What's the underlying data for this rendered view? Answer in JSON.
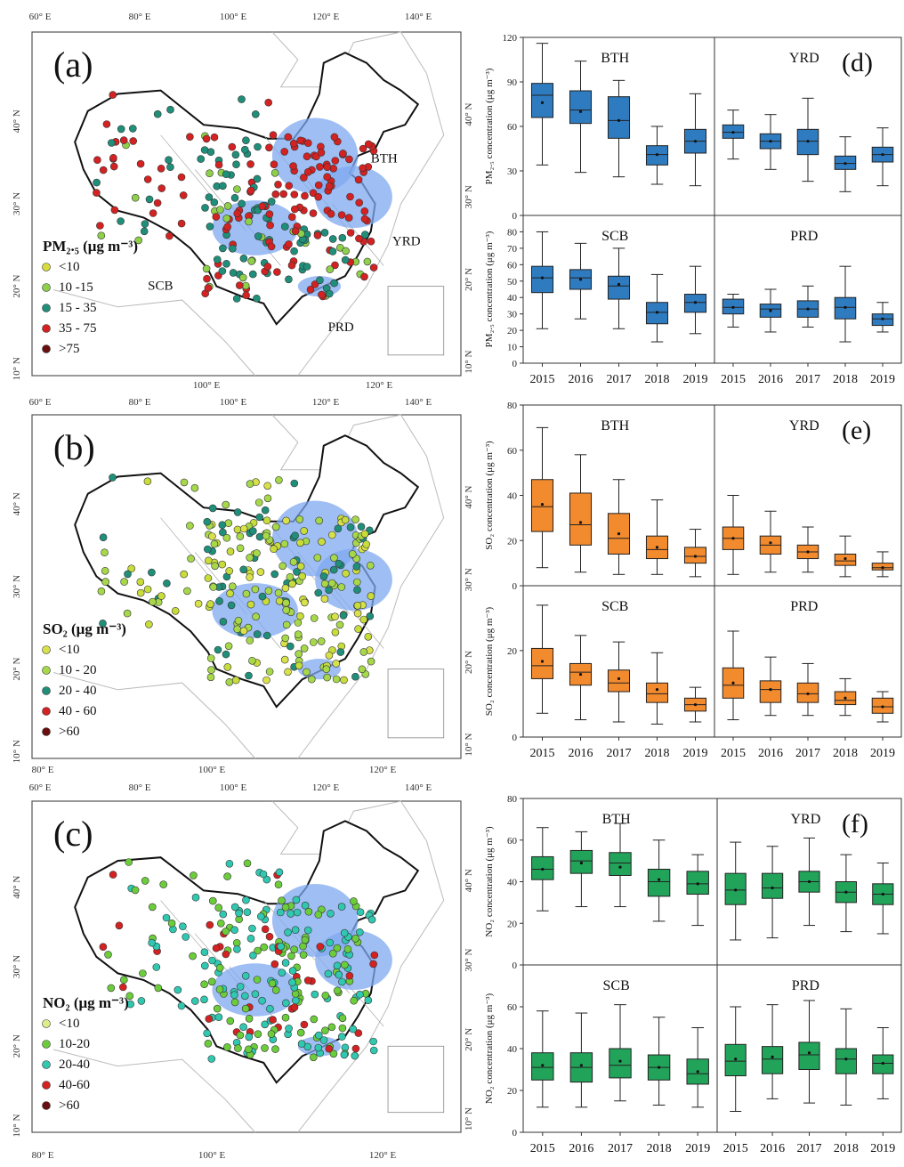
{
  "maps": [
    {
      "id": "a",
      "letter": "(a)",
      "legend_title": "PM₂.₅ (μg m⁻³)",
      "legend": [
        {
          "label": "<10",
          "color": "#d8dc3a"
        },
        {
          "label": "10 -15",
          "color": "#8fd04a"
        },
        {
          "label": "15 - 35",
          "color": "#1f8f7a"
        },
        {
          "label": "35 - 75",
          "color": "#d42222"
        },
        {
          "label": ">75",
          "color": "#6a0f0f"
        }
      ],
      "top_lon_ticks": [
        "60° E",
        "80° E",
        "100° E",
        "120° E",
        "140° E"
      ],
      "bottom_lon_ticks": [
        "100° E",
        "120° E"
      ],
      "left_lat_ticks": [
        "40° N",
        "30° N",
        "20° N",
        "10° N"
      ],
      "right_lat_ticks": [
        "40° N",
        "30° N",
        "20° N",
        "10° N"
      ],
      "region_labels": [
        "BTH",
        "YRD",
        "SCB",
        "PRD"
      ],
      "palette": [
        "#1f8f7a",
        "#d42222",
        "#d42222",
        "#1f8f7a",
        "#d42222",
        "#8fd04a",
        "#1f8f7a"
      ]
    },
    {
      "id": "b",
      "letter": "(b)",
      "legend_title": "SO₂ (μg m⁻³)",
      "legend": [
        {
          "label": "<10",
          "color": "#d8e04a"
        },
        {
          "label": "10 - 20",
          "color": "#a6d84a"
        },
        {
          "label": "20 - 40",
          "color": "#1f8f7a"
        },
        {
          "label": "40 - 60",
          "color": "#d42222"
        },
        {
          "label": ">60",
          "color": "#6a0f0f"
        }
      ],
      "top_lon_ticks": [
        "60° E",
        "80° E",
        "100° E",
        "120° E",
        "140° E"
      ],
      "bottom_lon_ticks": [
        "80° E",
        "100° E",
        "120° E"
      ],
      "left_lat_ticks": [
        "40° N",
        "30° N",
        "20° N",
        "10° N"
      ],
      "right_lat_ticks": [
        "40° N",
        "30° N",
        "20° N",
        "10° N"
      ],
      "region_labels": [],
      "palette": [
        "#c8dc3a",
        "#a6d84a",
        "#1f8f7a",
        "#c8dc3a",
        "#a6d84a",
        "#d8e04a",
        "#1f8f7a",
        "#a6d84a"
      ]
    },
    {
      "id": "c",
      "letter": "(c)",
      "legend_title": "NO₂ (μg m⁻³)",
      "legend": [
        {
          "label": "<10",
          "color": "#e0ec8a"
        },
        {
          "label": "10-20",
          "color": "#6ccd3a"
        },
        {
          "label": "20-40",
          "color": "#30c8b0"
        },
        {
          "label": "40-60",
          "color": "#d42222"
        },
        {
          "label": ">60",
          "color": "#6a0f0f"
        }
      ],
      "top_lon_ticks": [
        "60° E",
        "80° E",
        "100° E",
        "120° E",
        "140° E"
      ],
      "bottom_lon_ticks": [
        "80° E",
        "100° E",
        "120° E"
      ],
      "left_lat_ticks": [
        "40° N",
        "30° N",
        "20° N",
        "10° N"
      ],
      "right_lat_ticks": [
        "40° N",
        "30° N",
        "20° N",
        "10° N"
      ],
      "region_labels": [],
      "palette": [
        "#6ccd3a",
        "#30c8b0",
        "#30c8b0",
        "#6ccd3a",
        "#30c8b0",
        "#6ccd3a",
        "#d42222"
      ]
    }
  ],
  "chart_data": [
    {
      "type": "box",
      "letter": "(d)",
      "color": "#2f7bbf",
      "ylabel": "PM₂.₅ concentration (μg m⁻³)",
      "categories": [
        "2015",
        "2016",
        "2017",
        "2018",
        "2019"
      ],
      "panels": [
        {
          "region": "BTH",
          "ylim": [
            0,
            120
          ],
          "yticks": [
            0,
            30,
            60,
            90,
            120
          ],
          "boxes": [
            {
              "min": 34,
              "q1": 66,
              "median": 81,
              "q3": 89,
              "max": 116,
              "mean": 76
            },
            {
              "min": 29,
              "q1": 62,
              "median": 71,
              "q3": 84,
              "max": 104,
              "mean": 70
            },
            {
              "min": 26,
              "q1": 52,
              "median": 64,
              "q3": 80,
              "max": 91,
              "mean": 64
            },
            {
              "min": 21,
              "q1": 34,
              "median": 41,
              "q3": 47,
              "max": 60,
              "mean": 41
            },
            {
              "min": 20,
              "q1": 42,
              "median": 50,
              "q3": 58,
              "max": 82,
              "mean": 50
            }
          ]
        },
        {
          "region": "YRD",
          "ylim": [
            0,
            120
          ],
          "yticks": [
            0,
            30,
            60,
            90,
            120
          ],
          "boxes": [
            {
              "min": 38,
              "q1": 52,
              "median": 56,
              "q3": 61,
              "max": 71,
              "mean": 56
            },
            {
              "min": 31,
              "q1": 45,
              "median": 50,
              "q3": 55,
              "max": 68,
              "mean": 50
            },
            {
              "min": 23,
              "q1": 41,
              "median": 50,
              "q3": 58,
              "max": 79,
              "mean": 50
            },
            {
              "min": 16,
              "q1": 31,
              "median": 35,
              "q3": 40,
              "max": 53,
              "mean": 35
            },
            {
              "min": 20,
              "q1": 36,
              "median": 41,
              "q3": 46,
              "max": 59,
              "mean": 41
            }
          ]
        },
        {
          "region": "SCB",
          "ylim": [
            0,
            90
          ],
          "yticks": [
            0,
            10,
            20,
            30,
            40,
            50,
            60,
            70,
            80
          ],
          "boxes": [
            {
              "min": 21,
              "q1": 43,
              "median": 52,
              "q3": 59,
              "max": 80,
              "mean": 52
            },
            {
              "min": 27,
              "q1": 45,
              "median": 52,
              "q3": 57,
              "max": 73,
              "mean": 51
            },
            {
              "min": 21,
              "q1": 39,
              "median": 47,
              "q3": 53,
              "max": 70,
              "mean": 48
            },
            {
              "min": 13,
              "q1": 24,
              "median": 31,
              "q3": 37,
              "max": 54,
              "mean": 31
            },
            {
              "min": 18,
              "q1": 31,
              "median": 37,
              "q3": 42,
              "max": 59,
              "mean": 37
            }
          ]
        },
        {
          "region": "PRD",
          "ylim": [
            0,
            90
          ],
          "yticks": [
            0,
            10,
            20,
            30,
            40,
            50,
            60,
            70,
            80
          ],
          "boxes": [
            {
              "min": 22,
              "q1": 30,
              "median": 34,
              "q3": 39,
              "max": 42,
              "mean": 34
            },
            {
              "min": 19,
              "q1": 28,
              "median": 33,
              "q3": 36,
              "max": 45,
              "mean": 32
            },
            {
              "min": 22,
              "q1": 28,
              "median": 33,
              "q3": 38,
              "max": 47,
              "mean": 33
            },
            {
              "min": 13,
              "q1": 27,
              "median": 34,
              "q3": 40,
              "max": 59,
              "mean": 34
            },
            {
              "min": 19,
              "q1": 23,
              "median": 27,
              "q3": 30,
              "max": 37,
              "mean": 27
            }
          ]
        }
      ]
    },
    {
      "type": "box",
      "letter": "(e)",
      "color": "#f28a2e",
      "ylabel": "SO₂ concentration (μg m⁻³)",
      "categories": [
        "2015",
        "2016",
        "2017",
        "2018",
        "2019"
      ],
      "panels": [
        {
          "region": "BTH",
          "ylim": [
            0,
            80
          ],
          "yticks": [
            0,
            20,
            40,
            60,
            80
          ],
          "boxes": [
            {
              "min": 8,
              "q1": 24,
              "median": 35,
              "q3": 47,
              "max": 70,
              "mean": 36
            },
            {
              "min": 6,
              "q1": 18,
              "median": 27,
              "q3": 41,
              "max": 58,
              "mean": 28
            },
            {
              "min": 5,
              "q1": 14,
              "median": 21,
              "q3": 32,
              "max": 47,
              "mean": 23
            },
            {
              "min": 5,
              "q1": 12,
              "median": 16,
              "q3": 22,
              "max": 38,
              "mean": 17
            },
            {
              "min": 4,
              "q1": 10,
              "median": 13,
              "q3": 17,
              "max": 25,
              "mean": 13
            }
          ]
        },
        {
          "region": "YRD",
          "ylim": [
            0,
            80
          ],
          "yticks": [
            0,
            20,
            40,
            60,
            80
          ],
          "boxes": [
            {
              "min": 5,
              "q1": 16,
              "median": 21,
              "q3": 26,
              "max": 40,
              "mean": 21
            },
            {
              "min": 6,
              "q1": 14,
              "median": 18,
              "q3": 22,
              "max": 33,
              "mean": 19
            },
            {
              "min": 6,
              "q1": 12,
              "median": 15,
              "q3": 18,
              "max": 26,
              "mean": 15
            },
            {
              "min": 4,
              "q1": 9,
              "median": 11,
              "q3": 14,
              "max": 22,
              "mean": 12
            },
            {
              "min": 4,
              "q1": 7,
              "median": 8,
              "q3": 10,
              "max": 15,
              "mean": 8
            }
          ]
        },
        {
          "region": "SCB",
          "ylim": [
            0,
            35
          ],
          "yticks": [
            0,
            20
          ],
          "boxes": [
            {
              "min": 5.5,
              "q1": 13.5,
              "median": 16.5,
              "q3": 20.5,
              "max": 30.5,
              "mean": 17.5
            },
            {
              "min": 4,
              "q1": 12,
              "median": 15,
              "q3": 17,
              "max": 23.5,
              "mean": 14.5
            },
            {
              "min": 3.5,
              "q1": 10.5,
              "median": 12.5,
              "q3": 15.5,
              "max": 22,
              "mean": 13.5
            },
            {
              "min": 3,
              "q1": 8,
              "median": 10,
              "q3": 12.5,
              "max": 19.5,
              "mean": 11
            },
            {
              "min": 3.5,
              "q1": 6,
              "median": 7.5,
              "q3": 9,
              "max": 11.5,
              "mean": 7.5
            }
          ]
        },
        {
          "region": "PRD",
          "ylim": [
            0,
            35
          ],
          "yticks": [
            0,
            20
          ],
          "boxes": [
            {
              "min": 4,
              "q1": 9,
              "median": 12,
              "q3": 16,
              "max": 24.5,
              "mean": 12.5
            },
            {
              "min": 5,
              "q1": 8,
              "median": 11,
              "q3": 13,
              "max": 18.5,
              "mean": 11
            },
            {
              "min": 5,
              "q1": 8,
              "median": 10,
              "q3": 12.5,
              "max": 17,
              "mean": 10
            },
            {
              "min": 5,
              "q1": 7.5,
              "median": 8.5,
              "q3": 10.5,
              "max": 13.5,
              "mean": 9
            },
            {
              "min": 3.5,
              "q1": 5.5,
              "median": 7,
              "q3": 9,
              "max": 10.5,
              "mean": 7
            }
          ]
        }
      ]
    },
    {
      "type": "box",
      "letter": "(f)",
      "color": "#22a35a",
      "ylabel": "NO₂ concentration (μg m⁻³)",
      "categories": [
        "2015",
        "2016",
        "2017",
        "2018",
        "2019"
      ],
      "panels": [
        {
          "region": "BTH",
          "ylim": [
            0,
            80
          ],
          "yticks": [
            0,
            20,
            40,
            60,
            80
          ],
          "boxes": [
            {
              "min": 26,
              "q1": 41,
              "median": 46,
              "q3": 52,
              "max": 66,
              "mean": 46
            },
            {
              "min": 28,
              "q1": 44,
              "median": 50,
              "q3": 55,
              "max": 64,
              "mean": 49
            },
            {
              "min": 28,
              "q1": 43,
              "median": 49,
              "q3": 54,
              "max": 68,
              "mean": 47
            },
            {
              "min": 21,
              "q1": 33,
              "median": 40,
              "q3": 46,
              "max": 60,
              "mean": 41
            },
            {
              "min": 19,
              "q1": 34,
              "median": 39,
              "q3": 45,
              "max": 53,
              "mean": 39
            }
          ]
        },
        {
          "region": "YRD",
          "ylim": [
            0,
            80
          ],
          "yticks": [
            0,
            20,
            40,
            60,
            80
          ],
          "boxes": [
            {
              "min": 12,
              "q1": 29,
              "median": 36,
              "q3": 44,
              "max": 59,
              "mean": 36
            },
            {
              "min": 13,
              "q1": 32,
              "median": 37,
              "q3": 44,
              "max": 57,
              "mean": 37
            },
            {
              "min": 19,
              "q1": 35,
              "median": 40,
              "q3": 45,
              "max": 61,
              "mean": 40
            },
            {
              "min": 16,
              "q1": 30,
              "median": 35,
              "q3": 40,
              "max": 53,
              "mean": 35
            },
            {
              "min": 15,
              "q1": 29,
              "median": 34,
              "q3": 39,
              "max": 49,
              "mean": 34
            }
          ]
        },
        {
          "region": "SCB",
          "ylim": [
            0,
            80
          ],
          "yticks": [
            0,
            20,
            40,
            60
          ],
          "boxes": [
            {
              "min": 12,
              "q1": 25,
              "median": 31,
              "q3": 38,
              "max": 58,
              "mean": 32
            },
            {
              "min": 12,
              "q1": 24,
              "median": 31,
              "q3": 38,
              "max": 57,
              "mean": 32
            },
            {
              "min": 15,
              "q1": 26,
              "median": 32,
              "q3": 40,
              "max": 61,
              "mean": 34
            },
            {
              "min": 13,
              "q1": 25,
              "median": 31,
              "q3": 37,
              "max": 55,
              "mean": 31
            },
            {
              "min": 12,
              "q1": 23,
              "median": 28,
              "q3": 35,
              "max": 50,
              "mean": 29
            }
          ]
        },
        {
          "region": "PRD",
          "ylim": [
            0,
            80
          ],
          "yticks": [
            0,
            20,
            40,
            60
          ],
          "boxes": [
            {
              "min": 10,
              "q1": 27,
              "median": 34,
              "q3": 42,
              "max": 60,
              "mean": 35
            },
            {
              "min": 16,
              "q1": 28,
              "median": 35,
              "q3": 41,
              "max": 61,
              "mean": 36
            },
            {
              "min": 14,
              "q1": 30,
              "median": 37,
              "q3": 43,
              "max": 63,
              "mean": 38
            },
            {
              "min": 13,
              "q1": 28,
              "median": 35,
              "q3": 40,
              "max": 59,
              "mean": 35
            },
            {
              "min": 16,
              "q1": 28,
              "median": 33,
              "q3": 37,
              "max": 50,
              "mean": 33
            }
          ]
        }
      ]
    }
  ]
}
